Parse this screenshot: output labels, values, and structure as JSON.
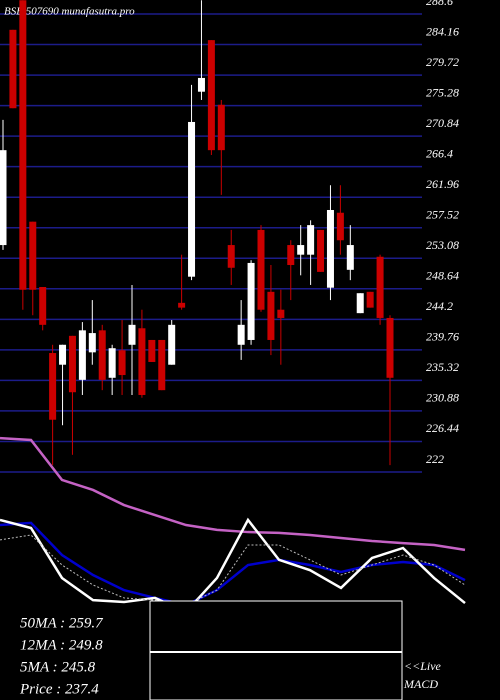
{
  "chart_data": [
    {
      "type": "candlestick",
      "title": "BSE 507690  munafasutra.pro",
      "ylim": [
        222,
        288.6
      ],
      "yticks": [
        288.6,
        284.16,
        279.72,
        275.28,
        270.84,
        266.4,
        261.96,
        257.52,
        253.08,
        248.64,
        244.2,
        239.76,
        235.32,
        230.88,
        226.44,
        222
      ],
      "grid": true,
      "grid_color": "#1c1c8a",
      "up_color": "#ffffff",
      "down_color": "#cc0000",
      "open": [
        255.0,
        286.3,
        290.6,
        258.4,
        248.9,
        239.3,
        237.6,
        241.8,
        235.4,
        239.4,
        242.6,
        235.7,
        239.7,
        240.5,
        242.9,
        241.2,
        241.2,
        237.6,
        246.6,
        250.4,
        277.3,
        284.8,
        275.4,
        255.0,
        240.5,
        241.2,
        257.2,
        248.2,
        245.6,
        255.0,
        253.6,
        253.6,
        257.2,
        248.8,
        259.7,
        251.4,
        245.1,
        248.2,
        253.3,
        244.4
      ],
      "high": [
        273.2,
        286.3,
        290.6,
        258.4,
        248.9,
        240.5,
        240.5,
        241.8,
        243.8,
        247.0,
        243.4,
        240.5,
        244.1,
        249.2,
        245.6,
        241.2,
        241.2,
        244.1,
        253.6,
        278.3,
        290.6,
        284.8,
        276.1,
        257.2,
        247.0,
        252.8,
        257.9,
        252.1,
        248.5,
        255.7,
        257.9,
        258.6,
        257.2,
        263.7,
        263.7,
        257.9,
        248.0,
        248.2,
        253.6,
        244.8
      ],
      "low": [
        254.3,
        274.9,
        245.6,
        244.8,
        242.6,
        223.0,
        228.8,
        224.5,
        233.2,
        237.6,
        233.9,
        233.2,
        233.2,
        233.2,
        232.8,
        238.0,
        233.9,
        237.6,
        245.6,
        249.9,
        276.1,
        268.1,
        262.3,
        249.2,
        238.3,
        240.5,
        245.3,
        239.0,
        237.6,
        247.0,
        250.6,
        249.2,
        251.1,
        247.0,
        253.6,
        249.9,
        245.1,
        245.9,
        243.4,
        223.0
      ],
      "close": [
        268.8,
        274.9,
        248.5,
        248.5,
        243.4,
        229.6,
        240.5,
        233.6,
        242.6,
        242.2,
        235.4,
        240.0,
        236.1,
        243.4,
        233.2,
        238.0,
        233.9,
        243.4,
        245.9,
        272.9,
        279.3,
        268.8,
        268.8,
        251.7,
        243.4,
        252.4,
        245.6,
        241.2,
        244.4,
        252.1,
        255.0,
        257.9,
        251.1,
        260.1,
        255.7,
        255.0,
        248.0,
        245.9,
        244.4,
        235.7
      ]
    },
    {
      "type": "line",
      "ylim": [
        0,
        100
      ],
      "series": [
        {
          "color": "#c462c4",
          "values": [
            97.0,
            96.3,
            81.5,
            77.8,
            72.2,
            68.5,
            64.8,
            63.0,
            62.2,
            61.9,
            61.1,
            60.0,
            58.9,
            58.1,
            57.4,
            55.6
          ]
        },
        {
          "color": "#0000cc",
          "values": [
            64.8,
            65.6,
            53.7,
            46.3,
            40.7,
            37.8,
            35.2,
            40.7,
            50.0,
            51.9,
            50.0,
            47.4,
            50.0,
            51.1,
            50.0,
            44.4
          ]
        },
        {
          "color": "#ffffff",
          "values": [
            66.7,
            63.7,
            45.2,
            37.0,
            36.3,
            37.8,
            32.6,
            45.2,
            66.7,
            51.9,
            48.1,
            41.5,
            52.6,
            56.3,
            45.2,
            35.9
          ]
        },
        {
          "color": "#bbbbbb",
          "dashed": true,
          "values": [
            59.3,
            61.1,
            50.0,
            42.6,
            37.8,
            37.0,
            35.2,
            40.7,
            57.4,
            57.4,
            51.9,
            46.3,
            50.0,
            53.7,
            50.0,
            42.6
          ]
        }
      ]
    }
  ],
  "ma_labels": [
    "50MA : 259.7",
    "12MA : 249.8",
    "5MA : 245.8",
    "Price   : 237.4"
  ],
  "live_label": "<<Live",
  "macd_label": "MACD"
}
